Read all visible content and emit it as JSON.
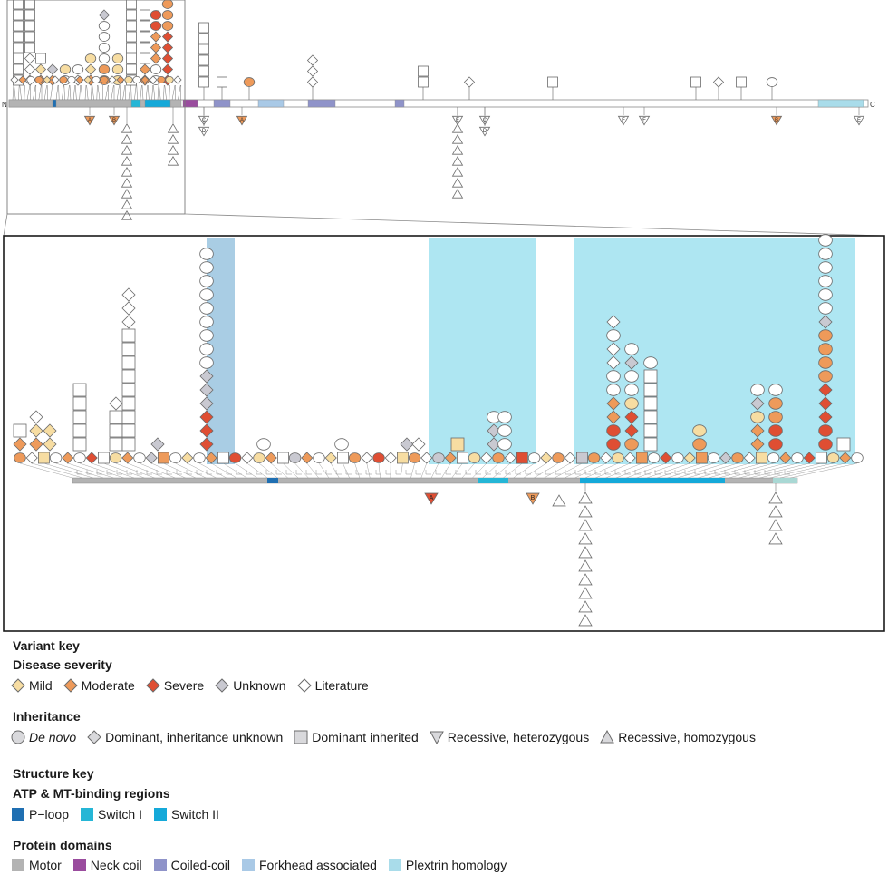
{
  "figure": {
    "termini": {
      "n": "N",
      "c": "C"
    },
    "domain_colors": {
      "motor": "#b3b3b3",
      "neck_coil": "#9a4c9e",
      "coiled_coil": "#8f93c9",
      "forkhead": "#a9c9e6",
      "plextrin": "#a9dcea",
      "p_loop": "#1f6fb2",
      "switch_i": "#25b6d6",
      "switch_ii": "#15a9d9"
    },
    "highlight_colors": {
      "blue": "#a9cde4",
      "cyan": "#aee6f2"
    },
    "severity_colors": {
      "mild": "#f7dda2",
      "moderate": "#ee9a5a",
      "severe": "#df4e33",
      "unknown": "#c9c9d1",
      "literature": "#ffffff"
    },
    "recessive_labels": [
      "A",
      "B",
      "C",
      "D",
      "E",
      "F"
    ]
  },
  "legend": {
    "variant_key": "Variant key",
    "disease_severity": {
      "title": "Disease severity",
      "items": [
        {
          "label": "Mild",
          "color": "#f7dda2"
        },
        {
          "label": "Moderate",
          "color": "#ee9a5a"
        },
        {
          "label": "Severe",
          "color": "#df4e33"
        },
        {
          "label": "Unknown",
          "color": "#c9c9d1"
        },
        {
          "label": "Literature",
          "color": "#ffffff"
        }
      ]
    },
    "inheritance": {
      "title": "Inheritance",
      "items": [
        {
          "label": "De novo",
          "shape": "circle"
        },
        {
          "label": "Dominant, inheritance unknown",
          "shape": "diamond"
        },
        {
          "label": "Dominant inherited",
          "shape": "square"
        },
        {
          "label": "Recessive, heterozygous",
          "shape": "triangle-down"
        },
        {
          "label": "Recessive, homozygous",
          "shape": "triangle-up"
        }
      ]
    },
    "structure_key": "Structure key",
    "atp_mt": {
      "title": "ATP & MT-binding regions",
      "items": [
        {
          "label": "P−loop",
          "color": "#1f6fb2"
        },
        {
          "label": "Switch I",
          "color": "#25b6d6"
        },
        {
          "label": "Switch II",
          "color": "#15a9d9"
        }
      ]
    },
    "protein_domains": {
      "title": "Protein domains",
      "items": [
        {
          "label": "Motor",
          "color": "#b3b3b3"
        },
        {
          "label": "Neck coil",
          "color": "#9a4c9e"
        },
        {
          "label": "Coiled-coil",
          "color": "#8f93c9"
        },
        {
          "label": "Forkhead associated",
          "color": "#a9c9e6"
        },
        {
          "label": "Plextrin homology",
          "color": "#a9dcea"
        }
      ]
    }
  }
}
